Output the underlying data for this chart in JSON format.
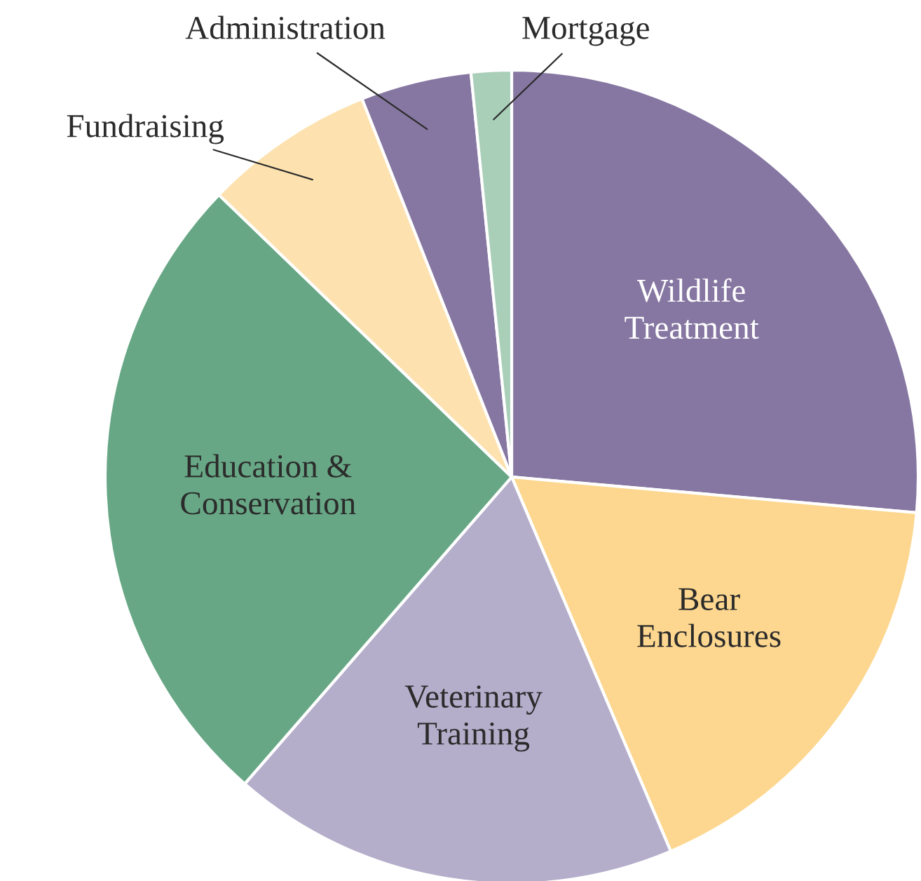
{
  "chart_data": {
    "type": "pie",
    "categories": [
      "Wildlife\nTreatment",
      "Bear\nEnclosures",
      "Veterinary\nTraining",
      "Education &\nConservation",
      "Fundraising",
      "Administration",
      "Mortgage"
    ],
    "values": [
      26.4,
      17.2,
      17.8,
      25.8,
      6.8,
      4.4,
      1.6
    ],
    "colors": [
      "#8677a2",
      "#fdd78f",
      "#b4aecb",
      "#67a785",
      "#fde2b0",
      "#8677a2",
      "#a9cfb8"
    ]
  }
}
